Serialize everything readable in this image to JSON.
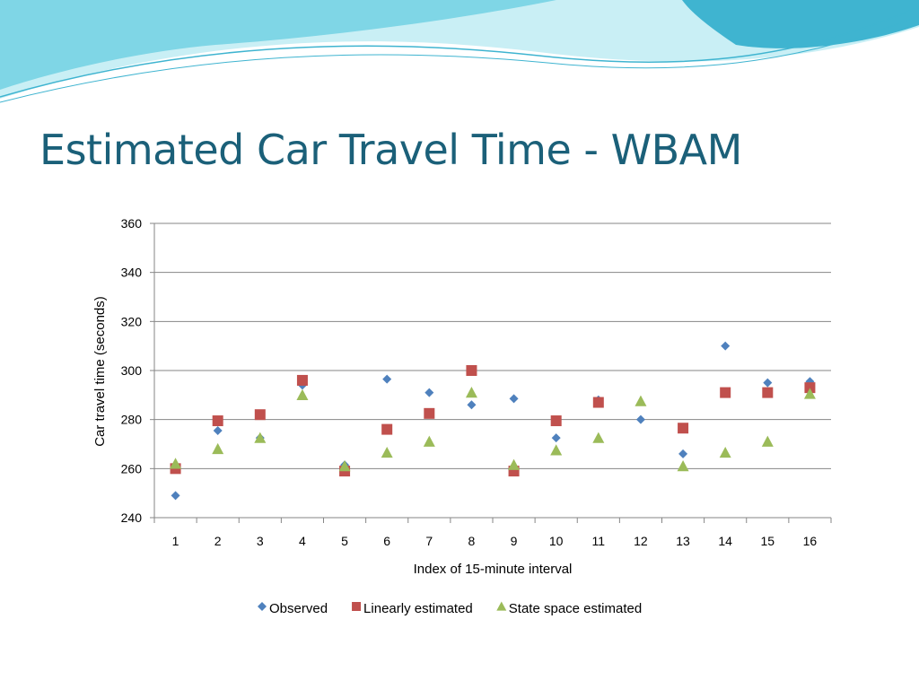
{
  "slide": {
    "title": "Estimated Car Travel Time - WBAM"
  },
  "colors": {
    "title": "#1b6079",
    "observed": "#4f81bd",
    "linear": "#c0504d",
    "state_space": "#9bbb59",
    "grid": "#868686",
    "wave_light": "#c9eff5",
    "wave_mid": "#7fd6e6",
    "wave_dark": "#3fb4d0"
  },
  "chart_data": {
    "type": "scatter",
    "title": "",
    "xlabel": "Index of 15-minute interval",
    "ylabel": "Car travel time (seconds)",
    "categories": [
      "1",
      "2",
      "3",
      "4",
      "5",
      "6",
      "7",
      "8",
      "9",
      "10",
      "11",
      "12",
      "13",
      "14",
      "15",
      "16"
    ],
    "ylim": [
      240,
      360
    ],
    "yticks": [
      240,
      260,
      280,
      300,
      320,
      340,
      360
    ],
    "grid": true,
    "legend_position": "bottom",
    "series": [
      {
        "name": "Observed",
        "marker": "diamond",
        "color": "#4f81bd",
        "values": [
          249,
          275.5,
          272.5,
          294,
          261.5,
          296.5,
          291,
          286,
          288.5,
          272.5,
          288,
          280,
          266,
          310,
          295,
          295.5
        ]
      },
      {
        "name": "Linearly estimated",
        "marker": "square",
        "color": "#c0504d",
        "values": [
          260,
          279.5,
          282,
          296,
          259,
          276,
          282.5,
          300,
          259,
          279.5,
          287,
          null,
          276.5,
          291,
          291,
          293
        ]
      },
      {
        "name": "State space estimated",
        "marker": "triangle",
        "color": "#9bbb59",
        "values": [
          262,
          268,
          272.5,
          290,
          261,
          266.5,
          271,
          291,
          261.5,
          267.5,
          272.5,
          287.5,
          261,
          266.5,
          271,
          290.5
        ]
      }
    ]
  }
}
